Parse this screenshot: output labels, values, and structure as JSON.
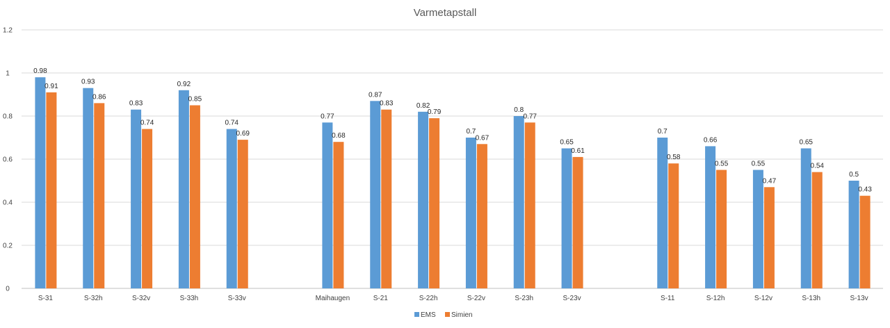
{
  "chart_data": {
    "type": "bar",
    "title": "Varmetapstall",
    "xlabel": "",
    "ylabel": "",
    "ylim": [
      0,
      1.2
    ],
    "yticks": [
      "0",
      "0.2",
      "0.4",
      "0.6",
      "0.8",
      "1",
      "1.2"
    ],
    "grid": true,
    "legend_position": "bottom",
    "categories": [
      "S-31",
      "S-32h",
      "S-32v",
      "S-33h",
      "S-33v",
      "",
      "Maihaugen",
      "S-21",
      "S-22h",
      "S-22v",
      "S-23h",
      "S-23v",
      "",
      "S-11",
      "S-12h",
      "S-12v",
      "S-13h",
      "S-13v"
    ],
    "series": [
      {
        "name": "EMS",
        "color": "#5B9BD5",
        "values": [
          0.98,
          0.93,
          0.83,
          0.92,
          0.74,
          null,
          0.77,
          0.87,
          0.82,
          0.7,
          0.8,
          0.65,
          null,
          0.7,
          0.66,
          0.55,
          0.65,
          0.5
        ],
        "labels": [
          "0.98",
          "0.93",
          "0.83",
          "0.92",
          "0.74",
          "",
          "0.77",
          "0.87",
          "0.82",
          "0.7",
          "0.8",
          "0.65",
          "",
          "0.7",
          "0.66",
          "0.55",
          "0.65",
          "0.5"
        ]
      },
      {
        "name": "Simien",
        "color": "#ED7D31",
        "values": [
          0.91,
          0.86,
          0.74,
          0.85,
          0.69,
          null,
          0.68,
          0.83,
          0.79,
          0.67,
          0.77,
          0.61,
          null,
          0.58,
          0.55,
          0.47,
          0.54,
          0.43
        ],
        "labels": [
          "0.91",
          "0.86",
          "0.74",
          "0.85",
          "0.69",
          "",
          "0.68",
          "0.83",
          "0.79",
          "0.67",
          "0.77",
          "0.61",
          "",
          "0.58",
          "0.55",
          "0.47",
          "0.54",
          "0.43"
        ]
      }
    ]
  }
}
